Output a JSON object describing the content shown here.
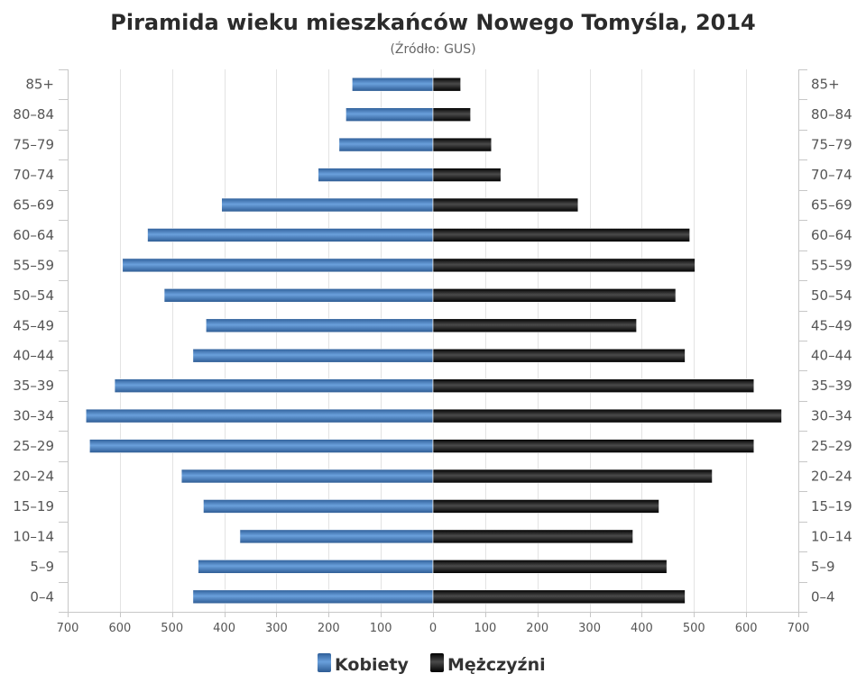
{
  "chart_data": {
    "type": "bar",
    "orientation": "horizontal",
    "title": "Piramida wieku mieszkańców Nowego Tomyśla, 2014",
    "subtitle": "(Źródło: GUS)",
    "categories": [
      "85+",
      "80–84",
      "75–79",
      "70–74",
      "65–69",
      "60–64",
      "55–59",
      "50–54",
      "45–49",
      "40–44",
      "35–39",
      "30–34",
      "25–29",
      "20–24",
      "15–19",
      "10–14",
      "5–9",
      "0–4"
    ],
    "series": [
      {
        "name": "Kobiety",
        "color": "#3f78b8",
        "side": "left",
        "values": [
          155,
          167,
          180,
          220,
          405,
          547,
          595,
          515,
          435,
          460,
          610,
          665,
          658,
          482,
          440,
          370,
          450,
          460
        ]
      },
      {
        "name": "Mężczyźni",
        "color": "#1a1a1a",
        "side": "right",
        "values": [
          53,
          72,
          112,
          130,
          278,
          492,
          502,
          465,
          390,
          483,
          615,
          668,
          615,
          535,
          433,
          383,
          448,
          483
        ]
      }
    ],
    "xlim": [
      -700,
      700
    ],
    "x_ticks": [
      "700",
      "600",
      "500",
      "400",
      "300",
      "200",
      "100",
      "0",
      "100",
      "200",
      "300",
      "400",
      "500",
      "600",
      "700"
    ],
    "grid": true,
    "legend_position": "bottom-center"
  }
}
